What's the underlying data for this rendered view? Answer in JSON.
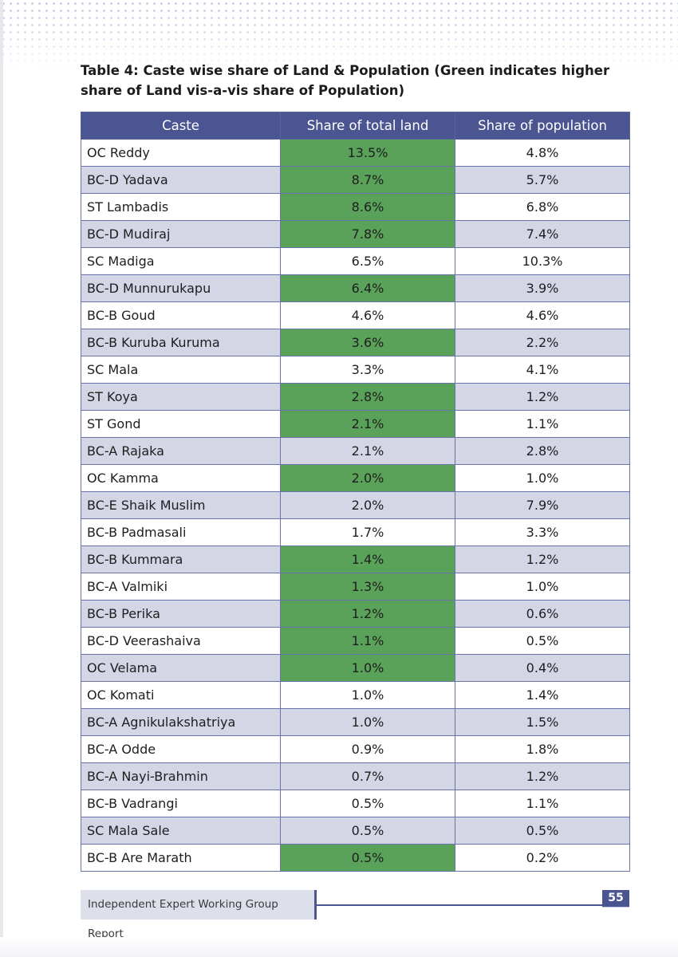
{
  "title": "Table 4: Caste wise share of Land & Population (Green indicates higher share of Land vis-a-vis share of Population)",
  "table": {
    "headers": [
      "Caste",
      "Share of total land",
      "Share of population"
    ],
    "rows": [
      {
        "caste": "OC Reddy",
        "land": "13.5%",
        "population": "4.8%",
        "land_higher": true
      },
      {
        "caste": "BC-D Yadava",
        "land": "8.7%",
        "population": "5.7%",
        "land_higher": true
      },
      {
        "caste": "ST Lambadis",
        "land": "8.6%",
        "population": "6.8%",
        "land_higher": true
      },
      {
        "caste": "BC-D Mudiraj",
        "land": "7.8%",
        "population": "7.4%",
        "land_higher": true
      },
      {
        "caste": "SC Madiga",
        "land": "6.5%",
        "population": "10.3%",
        "land_higher": false
      },
      {
        "caste": "BC-D Munnurukapu",
        "land": "6.4%",
        "population": "3.9%",
        "land_higher": true
      },
      {
        "caste": "BC-B Goud",
        "land": "4.6%",
        "population": "4.6%",
        "land_higher": false
      },
      {
        "caste": "BC-B Kuruba Kuruma",
        "land": "3.6%",
        "population": "2.2%",
        "land_higher": true
      },
      {
        "caste": "SC Mala",
        "land": "3.3%",
        "population": "4.1%",
        "land_higher": false
      },
      {
        "caste": "ST Koya",
        "land": "2.8%",
        "population": "1.2%",
        "land_higher": true
      },
      {
        "caste": "ST Gond",
        "land": "2.1%",
        "population": "1.1%",
        "land_higher": true
      },
      {
        "caste": "BC-A Rajaka",
        "land": "2.1%",
        "population": "2.8%",
        "land_higher": false
      },
      {
        "caste": "OC Kamma",
        "land": "2.0%",
        "population": "1.0%",
        "land_higher": true
      },
      {
        "caste": "BC-E Shaik Muslim",
        "land": "2.0%",
        "population": "7.9%",
        "land_higher": false
      },
      {
        "caste": "BC-B Padmasali",
        "land": "1.7%",
        "population": "3.3%",
        "land_higher": false
      },
      {
        "caste": "BC-B Kummara",
        "land": "1.4%",
        "population": "1.2%",
        "land_higher": true
      },
      {
        "caste": "BC-A Valmiki",
        "land": "1.3%",
        "population": "1.0%",
        "land_higher": true
      },
      {
        "caste": "BC-B Perika",
        "land": "1.2%",
        "population": "0.6%",
        "land_higher": true
      },
      {
        "caste": "BC-D Veerashaiva",
        "land": "1.1%",
        "population": "0.5%",
        "land_higher": true
      },
      {
        "caste": "OC Velama",
        "land": "1.0%",
        "population": "0.4%",
        "land_higher": true
      },
      {
        "caste": "OC Komati",
        "land": "1.0%",
        "population": "1.4%",
        "land_higher": false
      },
      {
        "caste": "BC-A Agnikulakshatriya",
        "land": "1.0%",
        "population": "1.5%",
        "land_higher": false
      },
      {
        "caste": "BC-A Odde",
        "land": "0.9%",
        "population": "1.8%",
        "land_higher": false
      },
      {
        "caste": "BC-A Nayi-Brahmin",
        "land": "0.7%",
        "population": "1.2%",
        "land_higher": false
      },
      {
        "caste": "BC-B Vadrangi",
        "land": "0.5%",
        "population": "1.1%",
        "land_higher": false
      },
      {
        "caste": "SC Mala Sale",
        "land": "0.5%",
        "population": "0.5%",
        "land_higher": false
      },
      {
        "caste": "BC-B Are Marath",
        "land": "0.5%",
        "population": "0.2%",
        "land_higher": true
      }
    ]
  },
  "footer": {
    "report_name": "Independent Expert Working Group Report",
    "page_number": "55"
  },
  "colors": {
    "header": "#4b5591",
    "highlight_green": "#5aa25a",
    "alt_row": "#d4d6e6"
  }
}
